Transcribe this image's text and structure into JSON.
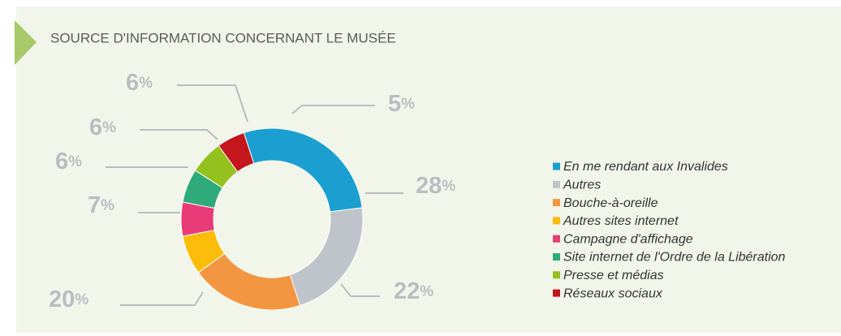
{
  "chart_data": {
    "type": "donut",
    "title": "SOURCE D'INFORMATION CONCERNANT LE MUSÉE",
    "categories": [
      "En me rendant aux Invalides",
      "Autres",
      "Bouche-à-oreille",
      "Autres sites internet",
      "Campagne d'affichage",
      "Site internet de l'Ordre de la Libération",
      "Presse et médias",
      "Réseaux sociaux"
    ],
    "values": [
      28,
      22,
      20,
      7,
      6,
      6,
      6,
      5
    ],
    "value_labels": [
      "28%",
      "22%",
      "20%",
      "7%",
      "6%",
      "6%",
      "6%",
      "5%"
    ],
    "colors": [
      "#1a9fd0",
      "#bfc4ca",
      "#f39642",
      "#fbbd0a",
      "#e83b77",
      "#2faa7a",
      "#95c11f",
      "#c4161c"
    ],
    "legend": "right"
  }
}
